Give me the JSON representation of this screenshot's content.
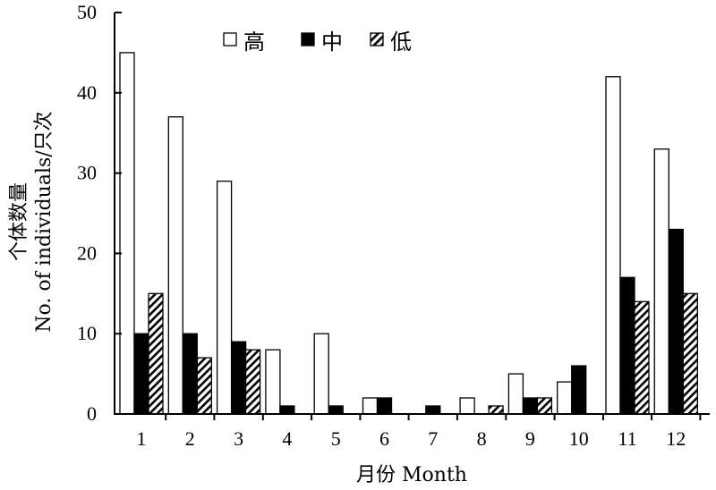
{
  "chart_data": {
    "type": "bar",
    "categories": [
      "1",
      "2",
      "3",
      "4",
      "5",
      "6",
      "7",
      "8",
      "9",
      "10",
      "11",
      "12"
    ],
    "series": [
      {
        "name": "高",
        "values": [
          45,
          37,
          29,
          8,
          10,
          2,
          0,
          2,
          5,
          4,
          42,
          33
        ],
        "fill": "white"
      },
      {
        "name": "中",
        "values": [
          10,
          10,
          9,
          1,
          1,
          2,
          1,
          0,
          2,
          6,
          17,
          23
        ],
        "fill": "solid"
      },
      {
        "name": "低",
        "values": [
          15,
          7,
          8,
          0,
          0,
          0,
          0,
          1,
          2,
          0,
          14,
          15
        ],
        "fill": "hatched"
      }
    ],
    "xlabel": "月份 Month",
    "ylabel": [
      "个体数量",
      "No. of individuals/只次"
    ],
    "ylim": [
      0,
      50
    ],
    "yticks": [
      0,
      10,
      20,
      30,
      40,
      50
    ],
    "grid": false,
    "legend_position": "top-center",
    "colors": {
      "stroke": "#000000",
      "solid": "#000000",
      "open": "#ffffff"
    }
  }
}
